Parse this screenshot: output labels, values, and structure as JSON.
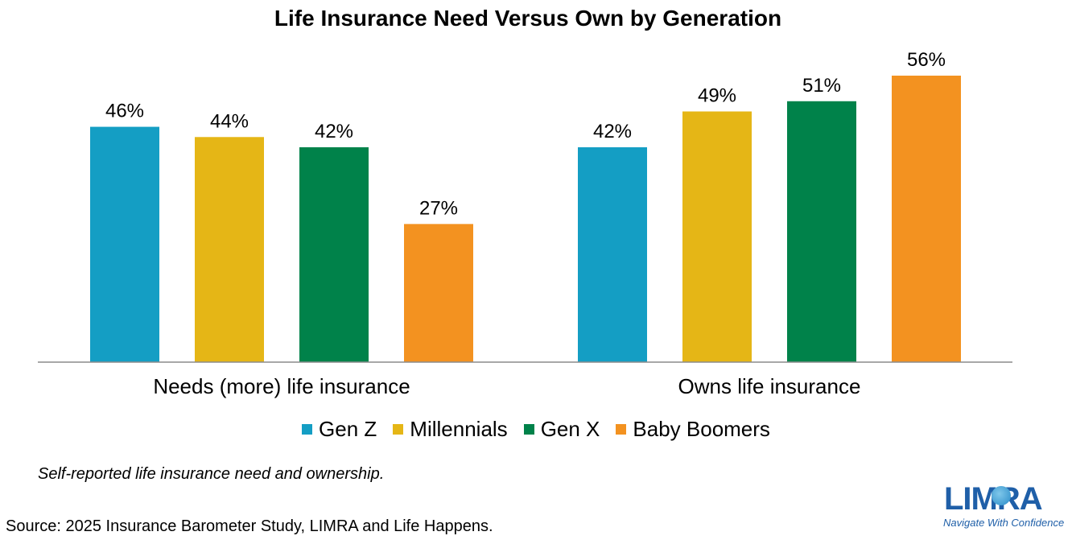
{
  "chart_data": {
    "type": "bar",
    "title": "Life Insurance Need Versus Own by Generation",
    "categories": [
      "Needs (more) life insurance",
      "Owns life insurance"
    ],
    "series": [
      {
        "name": "Gen Z",
        "values": [
          46,
          42
        ],
        "color": "#149ec4"
      },
      {
        "name": "Millennials",
        "values": [
          44,
          49
        ],
        "color": "#e5b616"
      },
      {
        "name": "Gen X",
        "values": [
          42,
          51
        ],
        "color": "#00824a"
      },
      {
        "name": "Baby Boomers",
        "values": [
          27,
          56
        ],
        "color": "#f39220"
      }
    ],
    "value_suffix": "%",
    "ylim": [
      0,
      60
    ],
    "grid": false,
    "legend_position": "bottom"
  },
  "note": "Self-reported life insurance need and ownership.",
  "source": "Source: 2025 Insurance Barometer Study, LIMRA and Life Happens.",
  "logo": {
    "word": "LIMRA",
    "tagline": "Navigate With Confidence",
    "icon": "globe-icon"
  }
}
